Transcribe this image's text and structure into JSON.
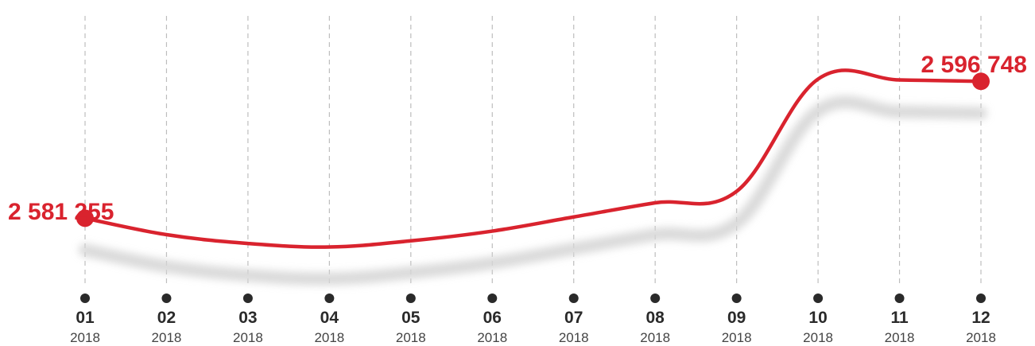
{
  "chart_data": {
    "type": "line",
    "title": "",
    "xlabel": "",
    "ylabel": "",
    "categories": [
      {
        "month": "01",
        "year": "2018"
      },
      {
        "month": "02",
        "year": "2018"
      },
      {
        "month": "03",
        "year": "2018"
      },
      {
        "month": "04",
        "year": "2018"
      },
      {
        "month": "05",
        "year": "2018"
      },
      {
        "month": "06",
        "year": "2018"
      },
      {
        "month": "07",
        "year": "2018"
      },
      {
        "month": "08",
        "year": "2018"
      },
      {
        "month": "09",
        "year": "2018"
      },
      {
        "month": "10",
        "year": "2018"
      },
      {
        "month": "11",
        "year": "2018"
      },
      {
        "month": "12",
        "year": "2018"
      }
    ],
    "series": [
      {
        "color": "#d9232e",
        "values": [
          2581255,
          2579400,
          2578400,
          2578000,
          2578700,
          2579800,
          2581400,
          2583000,
          2584300,
          2597000,
          2596900,
          2596748
        ]
      }
    ],
    "labels": {
      "first": "2 581 255",
      "last": "2 596 748"
    },
    "ylim": [
      2574000,
      2601000
    ],
    "grid": "vertical-dashed",
    "legend": "none",
    "colors": {
      "line": "#d9232e",
      "shadow": "#d6d6d6",
      "grid": "#bdbdbd",
      "tick_dot": "#2a2a2a"
    }
  }
}
